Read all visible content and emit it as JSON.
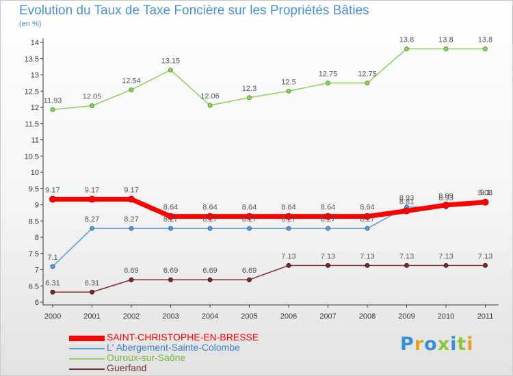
{
  "chart_data": {
    "type": "line",
    "title": "Evolution du Taux de Taxe Foncière sur les Propriétés Bâties",
    "unit_label": "(en %)",
    "x": [
      "2000",
      "2001",
      "2002",
      "2003",
      "2004",
      "2005",
      "2006",
      "2007",
      "2008",
      "2009",
      "2010",
      "2011"
    ],
    "ylim": [
      6,
      14
    ],
    "yticks": [
      6,
      6.5,
      7,
      7.5,
      8,
      8.5,
      9,
      9.5,
      10,
      10.5,
      11,
      11.5,
      12,
      12.5,
      13,
      13.5,
      14
    ],
    "grid": false,
    "legend_position": "bottom",
    "series": [
      {
        "name": "SAINT-CHRISTOPHE-EN-BRESSE",
        "color": "#ff0000",
        "values": [
          9.17,
          9.17,
          9.17,
          8.64,
          8.64,
          8.64,
          8.64,
          8.64,
          8.64,
          8.81,
          8.99,
          9.08
        ],
        "labels": [
          "9.17",
          "9.17",
          "9.17",
          "8.64",
          "8.64",
          "8.64",
          "8.64",
          "8.64",
          "8.64",
          "8.81",
          "8.99",
          "9.08"
        ]
      },
      {
        "name": "L' Abergement-Sainte-Colombe",
        "color": "#5b9bd5",
        "values": [
          7.1,
          8.27,
          8.27,
          8.27,
          8.27,
          8.27,
          8.27,
          8.27,
          8.27,
          8.93,
          8.93,
          9.1
        ],
        "labels": [
          "7.1",
          "8.27",
          "8.27",
          "8.27",
          "8.27",
          "8.27",
          "8.27",
          "8.27",
          "8.27",
          "8.93",
          "8.93",
          "9.1"
        ]
      },
      {
        "name": "Ouroux-sur-Saône",
        "color": "#8ed05b",
        "values": [
          11.93,
          12.05,
          12.54,
          13.15,
          12.06,
          12.3,
          12.5,
          12.75,
          12.75,
          13.8,
          13.8,
          13.8
        ],
        "labels": [
          "11.93",
          "12.05",
          "12.54",
          "13.15",
          "12.06",
          "12.3",
          "12.5",
          "12.75",
          "12.75",
          "13.8",
          "13.8",
          "13.8"
        ]
      },
      {
        "name": "Guerfand",
        "color": "#7a2a2a",
        "values": [
          6.31,
          6.31,
          6.69,
          6.69,
          6.69,
          6.69,
          7.13,
          7.13,
          7.13,
          7.13,
          7.13,
          7.13
        ],
        "labels": [
          "6.31",
          "6.31",
          "6.69",
          "6.69",
          "6.69",
          "6.69",
          "7.13",
          "7.13",
          "7.13",
          "7.13",
          "7.13",
          "7.13"
        ]
      }
    ]
  },
  "brand": {
    "text": "Proxiti",
    "letter_colors": [
      "#3a8fd8",
      "#e8a020",
      "#3a8fd8",
      "#8cc63f",
      "#3a8fd8",
      "#8cc63f",
      "#e8a020"
    ]
  }
}
